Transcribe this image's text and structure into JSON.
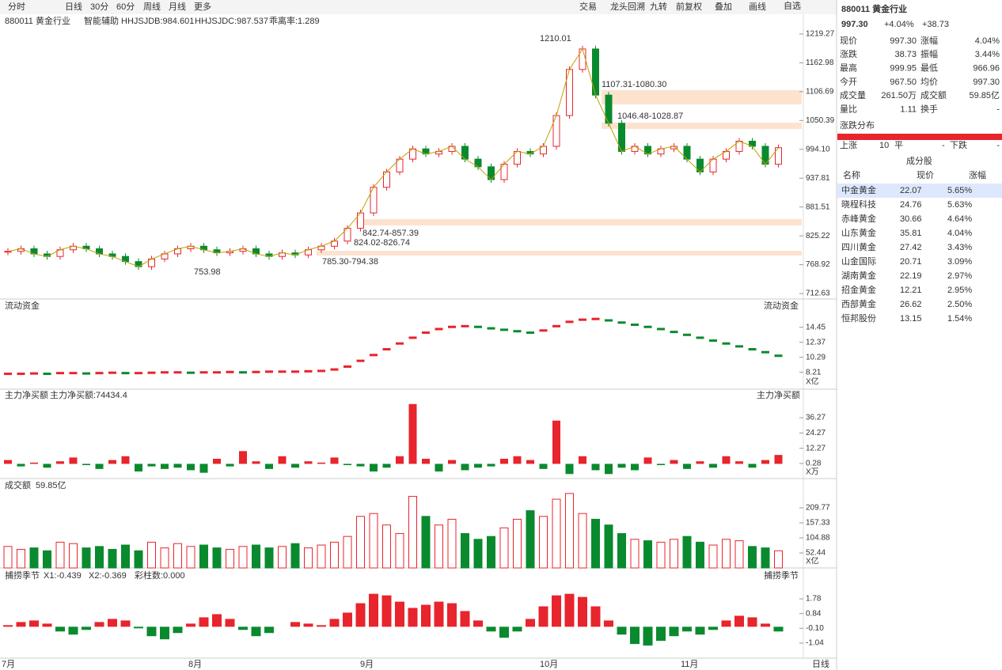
{
  "toolbar": {
    "tabs": [
      "分时",
      "日线",
      "30分",
      "60分",
      "周线",
      "月线",
      "更多"
    ],
    "tools": [
      "交易",
      "龙头回溯",
      "九转",
      "前复权",
      "叠加",
      "画线"
    ],
    "watch": "自选"
  },
  "header": {
    "code": "880011 黄金行业",
    "assist": "智能辅助",
    "ind1": "HHJSJDB:984.601",
    "ind2": "HHJSJDC:987.537",
    "ind3": "乖离率:1.289"
  },
  "price": {
    "ylim": [
      705,
      1247
    ],
    "yticks": [
      1219.27,
      1162.98,
      1106.69,
      1050.39,
      {
        "value": 994.1,
        "label": "994.10"
      },
      937.81,
      881.51,
      825.22,
      768.92,
      712.63
    ],
    "annotations": [
      "1210.01",
      "1107.31-1080.30",
      "1046.48-1028.87",
      "842.74-857.39",
      "824.02-826.74",
      "785.30-794.38",
      "753.98"
    ],
    "closes": [
      795,
      800,
      790,
      785,
      798,
      805,
      800,
      790,
      785,
      775,
      765,
      780,
      790,
      800,
      805,
      798,
      792,
      795,
      800,
      790,
      785,
      792,
      788,
      798,
      805,
      815,
      840,
      870,
      920,
      950,
      975,
      995,
      985,
      990,
      1000,
      975,
      960,
      935,
      965,
      990,
      985,
      1000,
      1060,
      1150,
      1190,
      1100,
      1045,
      990,
      1000,
      985,
      995,
      1000,
      975,
      950,
      975,
      990,
      1010,
      1000,
      965,
      997.3
    ]
  },
  "flow": {
    "title": "流动资金",
    "unit": "X亿",
    "ylim": [
      6.2,
      16.5
    ],
    "yticks": [
      14.45,
      12.37,
      10.29,
      8.21
    ],
    "values": [
      8.0,
      8.0,
      8.05,
      8.0,
      8.1,
      8.1,
      8.05,
      8.1,
      8.15,
      8.1,
      8.1,
      8.15,
      8.2,
      8.2,
      8.15,
      8.2,
      8.2,
      8.25,
      8.2,
      8.25,
      8.3,
      8.3,
      8.3,
      8.35,
      8.4,
      8.6,
      9.0,
      9.8,
      10.6,
      11.4,
      12.2,
      13.0,
      13.7,
      14.2,
      14.5,
      14.6,
      14.5,
      14.3,
      14.1,
      13.9,
      13.7,
      14.0,
      14.6,
      15.2,
      15.5,
      15.6,
      15.4,
      15.1,
      14.8,
      14.5,
      14.2,
      13.8,
      13.4,
      13.0,
      12.6,
      12.2,
      11.8,
      11.4,
      11.0,
      10.5
    ]
  },
  "net": {
    "title": "主力净买额",
    "value_text": "主力净买额:74434.4",
    "unit": "X万",
    "ylim": [
      -9.7,
      47.5
    ],
    "yticks": [
      36.27,
      24.27,
      12.27,
      0.28
    ],
    "values": [
      3,
      -2,
      1,
      -3,
      2,
      5,
      -1,
      -4,
      3,
      6,
      -6,
      -2,
      -4,
      -3,
      -5,
      -7,
      4,
      -2,
      10,
      2,
      -4,
      6,
      -3,
      2,
      1,
      5,
      -1,
      -2,
      -6,
      -3,
      6,
      47,
      4,
      -6,
      3,
      -5,
      -3,
      -2,
      4,
      6,
      3,
      -4,
      34,
      -8,
      6,
      -5,
      -8,
      -3,
      -5,
      5,
      -1,
      3,
      -4,
      2,
      -3,
      6,
      2,
      -3,
      3,
      7
    ]
  },
  "volume": {
    "title": "成交额",
    "value_text": "59.85亿",
    "unit": "X亿",
    "ylim": [
      0,
      265
    ],
    "yticks": [
      209.77,
      157.33,
      104.88,
      52.44
    ],
    "values": [
      75,
      65,
      70,
      60,
      90,
      85,
      70,
      75,
      65,
      80,
      60,
      90,
      70,
      85,
      75,
      80,
      70,
      65,
      75,
      80,
      70,
      75,
      85,
      70,
      80,
      90,
      110,
      180,
      190,
      150,
      120,
      250,
      180,
      150,
      170,
      120,
      100,
      110,
      140,
      170,
      200,
      180,
      240,
      260,
      190,
      170,
      150,
      120,
      100,
      95,
      90,
      100,
      110,
      90,
      80,
      100,
      95,
      75,
      70,
      60
    ]
  },
  "osc": {
    "title": "捕捞季节",
    "x1": "X1:-0.439",
    "x2": "X2:-0.369",
    "bars": "彩柱数:0.000",
    "ylim": [
      -1.9,
      2.79
    ],
    "yticks": [
      1.78,
      0.84,
      {
        "value": -0.1,
        "label": "-0.10"
      },
      -1.04
    ],
    "values": [
      0.1,
      0.3,
      0.4,
      0.2,
      -0.3,
      -0.5,
      -0.2,
      0.3,
      0.5,
      0.4,
      -0.1,
      -0.6,
      -0.8,
      -0.4,
      0.2,
      0.6,
      0.8,
      0.5,
      -0.2,
      -0.6,
      -0.4,
      0.0,
      0.3,
      0.2,
      0.1,
      0.5,
      0.9,
      1.5,
      2.1,
      2.0,
      1.6,
      1.2,
      1.4,
      1.6,
      1.5,
      1.0,
      0.4,
      -0.3,
      -0.7,
      -0.3,
      0.5,
      1.3,
      2.0,
      2.1,
      1.9,
      1.3,
      0.4,
      -0.5,
      -1.1,
      -1.2,
      -0.9,
      -0.6,
      -0.3,
      -0.5,
      -0.2,
      0.4,
      0.7,
      0.6,
      0.2,
      -0.3
    ]
  },
  "months": [
    "7月",
    "8月",
    "9月",
    "10月",
    "11月"
  ],
  "period": "日线",
  "side": {
    "title": "880011 黄金行业",
    "price": "997.30",
    "pct": "+4.04%",
    "chg": "+38.73",
    "rows": [
      [
        "现价",
        "997.30",
        "涨幅",
        "4.04%"
      ],
      [
        "涨跌",
        "38.73",
        "振幅",
        "3.44%"
      ],
      [
        "最高",
        "999.95",
        "最低",
        "966.96"
      ],
      [
        "今开",
        "967.50",
        "均价",
        "997.30"
      ],
      [
        "成交量",
        "261.50万",
        "成交额",
        "59.85亿"
      ],
      [
        "量比",
        "1.11",
        "换手",
        "-"
      ]
    ],
    "dist_title": "涨跌分布",
    "dist": [
      "上涨",
      "10",
      "平",
      "-",
      "下跌",
      "-"
    ],
    "comp_title": "成分股",
    "cols": [
      "名称",
      "现价",
      "涨幅"
    ],
    "stocks": [
      [
        "中金黄金",
        "22.07",
        "5.65%"
      ],
      [
        "晓程科技",
        "24.76",
        "5.63%"
      ],
      [
        "赤峰黄金",
        "30.66",
        "4.64%"
      ],
      [
        "山东黄金",
        "35.81",
        "4.04%"
      ],
      [
        "四川黄金",
        "27.42",
        "3.43%"
      ],
      [
        "山金国际",
        "20.71",
        "3.09%"
      ],
      [
        "湖南黄金",
        "22.19",
        "2.97%"
      ],
      [
        "招金黄金",
        "12.21",
        "2.95%"
      ],
      [
        "西部黄金",
        "26.62",
        "2.50%"
      ],
      [
        "恒邦股份",
        "13.15",
        "1.54%"
      ]
    ]
  }
}
